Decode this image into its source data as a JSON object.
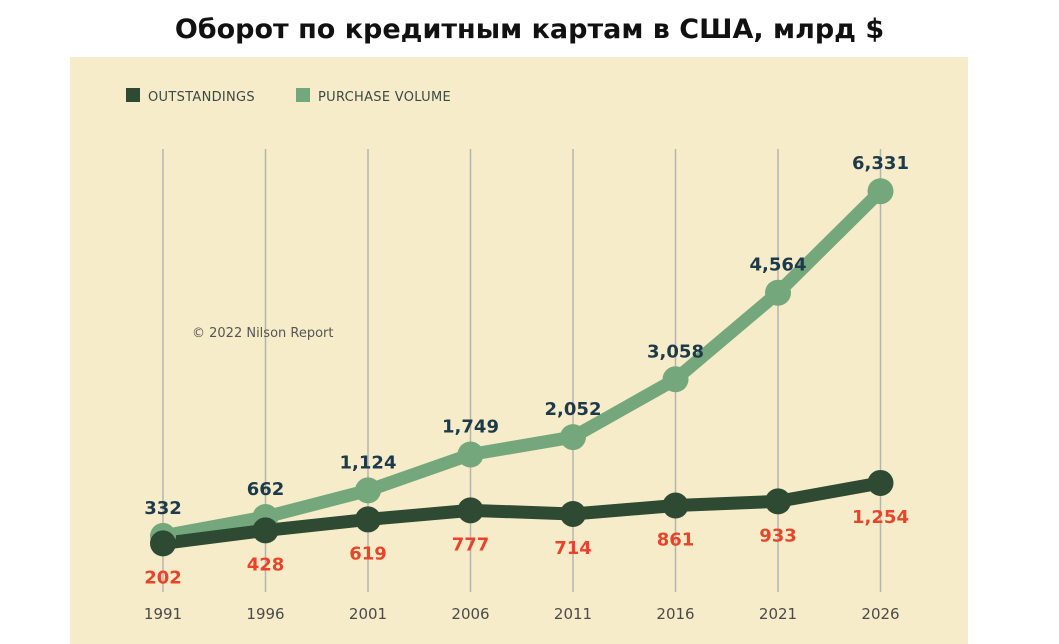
{
  "title": "Оборот по кредитным картам в США, млрд $",
  "copyright": "© 2022 Nilson Report",
  "colors": {
    "background": "#f7ecc9",
    "outstandings": "#2e4a33",
    "purchase": "#74a87c",
    "purchase_label": "#1c3a4a",
    "outstandings_label": "#e8442c",
    "gridline": "#b5b5b0"
  },
  "chart_data": {
    "type": "line",
    "title": "Оборот по кредитным картам в США, млрд $",
    "categories": [
      "1991",
      "1996",
      "2001",
      "2006",
      "2011",
      "2016",
      "2021",
      "2026"
    ],
    "series": [
      {
        "name": "OUTSTANDINGS",
        "values": [
          202,
          428,
          619,
          777,
          714,
          861,
          933,
          1254
        ],
        "labels": [
          "202",
          "428",
          "619",
          "777",
          "714",
          "861",
          "933",
          "1,254"
        ]
      },
      {
        "name": "PURCHASE VOLUME",
        "values": [
          332,
          662,
          1124,
          1749,
          2052,
          3058,
          4564,
          6331
        ],
        "labels": [
          "332",
          "662",
          "1,124",
          "1,749",
          "2,052",
          "3,058",
          "4,564",
          "6,331"
        ]
      }
    ],
    "legend": [
      "OUTSTANDINGS",
      "PURCHASE VOLUME"
    ],
    "legend_position": "top-left",
    "ylim": [
      0,
      6700
    ],
    "grid": "vertical"
  }
}
